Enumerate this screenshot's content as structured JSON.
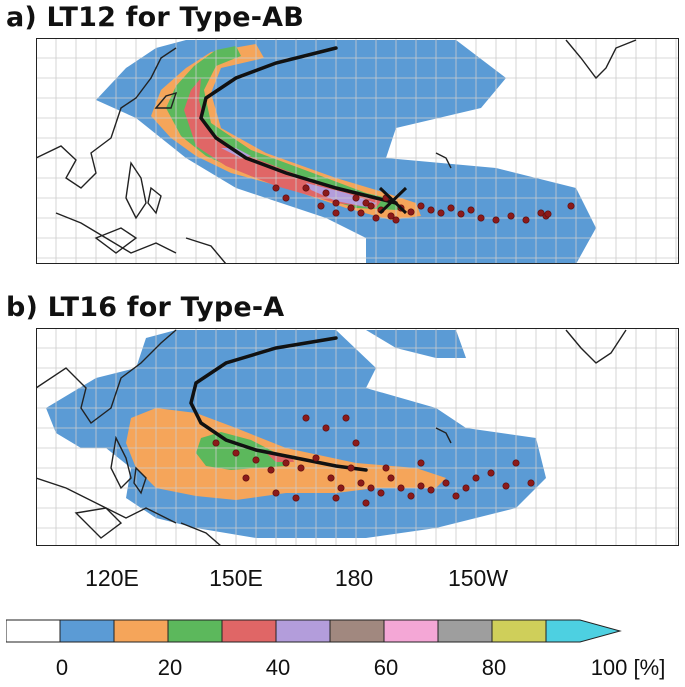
{
  "panels": [
    {
      "id": "a",
      "title": "a) LT12 for Type-AB"
    },
    {
      "id": "b",
      "title": "b) LT16 for Type-A"
    }
  ],
  "lon_labels": [
    "120E",
    "150E",
    "180",
    "150W"
  ],
  "colorbar": {
    "ticks": [
      "0",
      "20",
      "40",
      "60",
      "80",
      "100 [%]"
    ],
    "bins": [
      {
        "range": "0-10",
        "color": "#ffffff"
      },
      {
        "range": "10-20",
        "color": "#5b9bd5"
      },
      {
        "range": "20-30",
        "color": "#f5a55a"
      },
      {
        "range": "30-40",
        "color": "#5cb85c"
      },
      {
        "range": "40-50",
        "color": "#e06666"
      },
      {
        "range": "50-60",
        "color": "#b39ddb"
      },
      {
        "range": "60-70",
        "color": "#a1887f"
      },
      {
        "range": "70-80",
        "color": "#f4a7d6"
      },
      {
        "range": "80-90",
        "color": "#9e9e9e"
      },
      {
        "range": "90-100",
        "color": "#cfcf5a"
      },
      {
        "range": ">100",
        "color": "#4dd0e1"
      }
    ]
  },
  "colors": {
    "track": "#111111",
    "genesis_point": "#8b1a1a",
    "coast": "#222222",
    "grid": "#cccccc"
  },
  "markers": {
    "panel_a_cross": "x-mark"
  }
}
